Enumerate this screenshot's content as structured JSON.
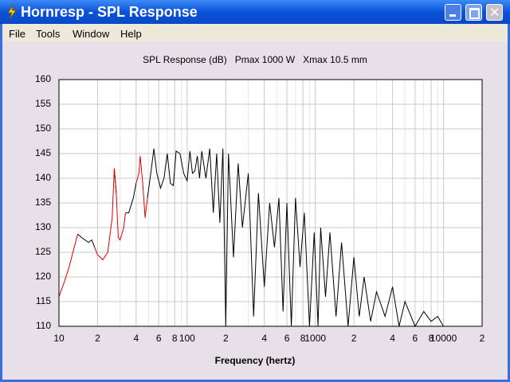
{
  "window": {
    "title": "Hornresp - SPL Response",
    "menu": [
      "File",
      "Tools",
      "Window",
      "Help"
    ]
  },
  "chart_data": {
    "type": "line",
    "title": "SPL Response (dB)   Pmax 1000 W   Xmax 10.5 mm",
    "x_label": "Frequency (hertz)",
    "x_scale": "log",
    "grid": true,
    "xlim": [
      10,
      20000
    ],
    "ylim": [
      110,
      160
    ],
    "yticks": [
      110,
      115,
      120,
      125,
      130,
      135,
      140,
      145,
      150,
      155,
      160
    ],
    "xticks": [
      10,
      {
        "value": 20,
        "label": "2"
      },
      {
        "value": 40,
        "label": "4"
      },
      {
        "value": 60,
        "label": "6"
      },
      {
        "value": 80,
        "label": "8"
      },
      100,
      {
        "value": 200,
        "label": "2"
      },
      {
        "value": 400,
        "label": "4"
      },
      {
        "value": 600,
        "label": "6"
      },
      {
        "value": 800,
        "label": "8"
      },
      1000,
      {
        "value": 2000,
        "label": "2"
      },
      {
        "value": 4000,
        "label": "4"
      },
      {
        "value": 6000,
        "label": "6"
      },
      {
        "value": 8000,
        "label": "8"
      },
      10000,
      {
        "value": 20000,
        "label": "2"
      }
    ],
    "xminor": [
      30,
      50,
      70,
      90,
      300,
      500,
      700,
      900,
      3000,
      5000,
      7000,
      9000
    ],
    "x": [
      10,
      11,
      12,
      13,
      14,
      15,
      17,
      18,
      19,
      20,
      22,
      24,
      26,
      27,
      28,
      29,
      30,
      32,
      33,
      35,
      38,
      40,
      42,
      43,
      45,
      47,
      49,
      52,
      55,
      58,
      62,
      66,
      70,
      74,
      78,
      82,
      88,
      94,
      100,
      105,
      110,
      115,
      120,
      125,
      130,
      140,
      150,
      160,
      170,
      180,
      190,
      200,
      210,
      230,
      250,
      270,
      300,
      330,
      360,
      400,
      440,
      480,
      520,
      560,
      600,
      650,
      700,
      760,
      820,
      900,
      980,
      1050,
      1100,
      1200,
      1300,
      1450,
      1600,
      1800,
      2000,
      2200,
      2400,
      2700,
      3000,
      3500,
      4000,
      4500,
      5000,
      6000,
      7000,
      8000,
      9000,
      10000
    ],
    "series": [
      {
        "color": "#000000",
        "values": [
          null,
          null,
          null,
          null,
          128.7,
          128,
          127,
          127.5,
          126,
          null,
          null,
          null,
          null,
          142,
          137,
          null,
          null,
          null,
          133,
          133,
          136,
          139,
          null,
          null,
          null,
          null,
          136,
          141,
          146,
          141,
          138,
          140,
          145,
          139,
          138.5,
          145.5,
          145,
          141,
          139.5,
          145.5,
          141,
          141.5,
          144.5,
          140,
          145.5,
          140,
          146,
          133,
          145,
          131,
          146,
          110,
          145,
          124,
          143,
          130,
          141,
          112,
          137,
          118,
          135,
          126,
          136,
          113,
          135,
          110,
          136,
          122,
          133,
          110,
          129,
          110,
          130,
          116,
          129,
          112,
          127,
          110,
          124,
          112,
          120,
          111,
          117,
          112,
          118,
          110,
          115,
          110,
          113,
          111,
          112,
          110
        ]
      },
      {
        "color": "#e00000",
        "values": [
          116,
          119,
          122,
          125.5,
          128.7,
          null,
          null,
          null,
          126,
          124.5,
          123.5,
          125,
          132,
          142,
          137,
          128,
          127.5,
          130,
          133,
          null,
          null,
          139,
          141,
          144.5,
          139,
          132,
          136,
          null,
          null,
          null,
          null,
          null,
          null,
          null,
          null,
          null,
          null,
          null,
          null,
          null,
          null,
          null,
          null,
          null,
          null,
          null,
          null,
          null,
          null,
          null,
          null,
          null,
          null,
          null,
          null,
          null,
          null,
          null,
          null,
          null,
          null,
          null,
          null,
          null,
          null,
          null,
          null,
          null,
          null,
          null,
          null,
          null,
          null,
          null,
          null,
          null,
          null,
          null,
          null,
          null,
          null,
          null,
          null,
          null,
          null,
          null,
          null,
          null,
          null,
          null,
          null,
          null
        ]
      }
    ]
  }
}
